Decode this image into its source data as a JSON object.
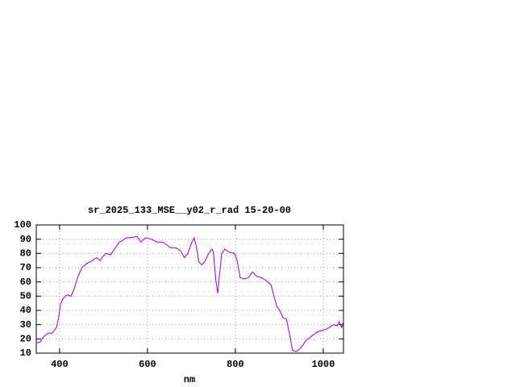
{
  "chart_data": {
    "type": "line",
    "title": "sr_2025_133_MSE__y02_r_rad 15-20-00",
    "x_label": "nm",
    "x": [
      347,
      356,
      365,
      374,
      383,
      393,
      398,
      402,
      407,
      417,
      426,
      433,
      442,
      451,
      462,
      475,
      484,
      492,
      499,
      506,
      516,
      527,
      536,
      543,
      552,
      563,
      576,
      585,
      596,
      609,
      622,
      635,
      644,
      653,
      664,
      675,
      684,
      692,
      700,
      706,
      711,
      717,
      724,
      732,
      739,
      747,
      750,
      756,
      760,
      763,
      769,
      776,
      785,
      798,
      804,
      811,
      820,
      830,
      839,
      848,
      859,
      870,
      881,
      888,
      894,
      901,
      908,
      916,
      923,
      930,
      939,
      950,
      961,
      974,
      987,
      998,
      1009,
      1018,
      1025,
      1031,
      1036,
      1042,
      1046
    ],
    "series": [
      {
        "color": "#9400d3",
        "values": [
          17,
          18,
          22,
          24,
          24,
          28,
          35,
          44,
          48,
          51,
          50,
          55,
          64,
          70,
          73,
          75,
          77,
          75,
          78,
          80,
          79,
          84,
          88,
          89,
          91,
          91,
          92,
          88,
          91,
          90,
          88,
          88,
          86,
          84,
          84,
          82,
          77,
          80,
          87,
          91,
          85,
          74,
          72,
          75,
          80,
          83,
          81,
          60,
          52,
          62,
          80,
          83,
          81,
          80,
          75,
          63,
          62,
          63,
          67,
          64,
          63,
          61,
          58,
          50,
          43,
          40,
          35,
          34,
          24,
          12,
          11,
          14,
          19,
          22,
          25,
          26,
          27,
          29,
          30,
          29,
          32,
          28,
          32
        ]
      }
    ],
    "xlim": [
      347,
      1046
    ],
    "ylim": [
      10,
      100
    ],
    "xticks": [
      400,
      600,
      800,
      1000
    ],
    "yticks": [
      10,
      20,
      30,
      40,
      50,
      60,
      70,
      80,
      90,
      100
    ],
    "grid": true
  }
}
